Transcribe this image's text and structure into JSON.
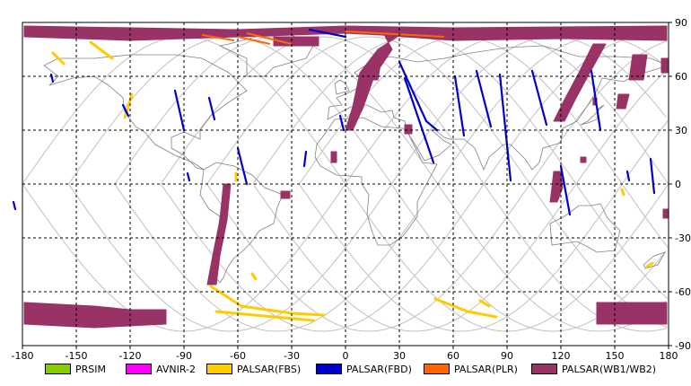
{
  "axes": {
    "x_ticks": [
      "-180",
      "-150",
      "-120",
      "-90",
      "-60",
      "-30",
      "0",
      "30",
      "60",
      "90",
      "120",
      "150",
      "180"
    ],
    "y_ticks": [
      "90",
      "60",
      "30",
      "0",
      "-30",
      "-60",
      "-90"
    ]
  },
  "legend": [
    {
      "label": "PRSIM",
      "color": "#88cc00"
    },
    {
      "label": "AVNIR-2",
      "color": "#ff00ff"
    },
    {
      "label": "PALSAR(FBS)",
      "color": "#ffcc00"
    },
    {
      "label": "PALSAR(FBD)",
      "color": "#0000cc"
    },
    {
      "label": "PALSAR(PLR)",
      "color": "#ff6600"
    },
    {
      "label": "PALSAR(WB1/WB2)",
      "color": "#993366"
    }
  ],
  "chart_data": {
    "type": "map",
    "projection": "equirectangular",
    "xlim": [
      -180,
      180
    ],
    "ylim": [
      -90,
      90
    ],
    "grid": true,
    "swaths": {
      "wb": [
        {
          "name": "arctic-band",
          "pts": [
            [
              -179,
              88
            ],
            [
              -60,
              86
            ],
            [
              0,
              88
            ],
            [
              60,
              87
            ],
            [
              179,
              88
            ],
            [
              179,
              80
            ],
            [
              120,
              81
            ],
            [
              60,
              80
            ],
            [
              20,
              83
            ],
            [
              0,
              84
            ],
            [
              -60,
              82
            ],
            [
              -120,
              80
            ],
            [
              -179,
              82
            ]
          ]
        },
        {
          "name": "greenland-block",
          "pts": [
            [
              -40,
              82
            ],
            [
              -15,
              82
            ],
            [
              -15,
              77
            ],
            [
              -40,
              77
            ]
          ]
        },
        {
          "name": "europe-arc",
          "pts": [
            [
              20,
              86
            ],
            [
              35,
              86
            ],
            [
              18,
              75
            ],
            [
              8,
              62
            ],
            [
              4,
              43
            ],
            [
              0,
              30
            ],
            [
              4,
              30
            ],
            [
              10,
              43
            ],
            [
              16,
              60
            ],
            [
              26,
              75
            ]
          ]
        },
        {
          "name": "scandinavia-strip",
          "pts": [
            [
              14,
              70
            ],
            [
              20,
              70
            ],
            [
              18,
              58
            ],
            [
              12,
              58
            ]
          ]
        },
        {
          "name": "siberia-arc",
          "pts": [
            [
              138,
              78
            ],
            [
              145,
              78
            ],
            [
              135,
              60
            ],
            [
              128,
              47
            ],
            [
              122,
              35
            ],
            [
              116,
              35
            ],
            [
              122,
              47
            ],
            [
              130,
              62
            ]
          ]
        },
        {
          "name": "kamchatka",
          "pts": [
            [
              160,
              72
            ],
            [
              168,
              72
            ],
            [
              166,
              58
            ],
            [
              158,
              58
            ]
          ]
        },
        {
          "name": "kamchatka-2",
          "pts": [
            [
              176,
              70
            ],
            [
              180,
              70
            ],
            [
              180,
              62
            ],
            [
              176,
              62
            ]
          ]
        },
        {
          "name": "sakhalin",
          "pts": [
            [
              152,
              50
            ],
            [
              158,
              50
            ],
            [
              156,
              42
            ],
            [
              151,
              42
            ]
          ]
        },
        {
          "name": "japan-strip",
          "pts": [
            [
              138,
              48
            ],
            [
              140,
              48
            ],
            [
              140,
              44
            ],
            [
              138,
              44
            ]
          ]
        },
        {
          "name": "se-asia-strip",
          "pts": [
            [
              116,
              7
            ],
            [
              120,
              7
            ],
            [
              121,
              -2
            ],
            [
              118,
              -10
            ],
            [
              114,
              -10
            ],
            [
              115,
              -2
            ]
          ]
        },
        {
          "name": "andes-strip",
          "pts": [
            [
              -68,
              0
            ],
            [
              -64,
              0
            ],
            [
              -66,
              -20
            ],
            [
              -70,
              -40
            ],
            [
              -72,
              -56
            ],
            [
              -77,
              -56
            ],
            [
              -74,
              -40
            ],
            [
              -70,
              -20
            ]
          ]
        },
        {
          "name": "caribbean",
          "pts": [
            [
              -8,
              18
            ],
            [
              -5,
              18
            ],
            [
              -5,
              12
            ],
            [
              -8,
              12
            ]
          ]
        },
        {
          "name": "amazon",
          "pts": [
            [
              -36,
              -4
            ],
            [
              -31,
              -4
            ],
            [
              -31,
              -8
            ],
            [
              -36,
              -8
            ]
          ]
        },
        {
          "name": "arabia",
          "pts": [
            [
              33,
              33
            ],
            [
              37,
              33
            ],
            [
              37,
              28
            ],
            [
              33,
              28
            ]
          ]
        },
        {
          "name": "png",
          "pts": [
            [
              177,
              -14
            ],
            [
              180,
              -14
            ],
            [
              180,
              -19
            ],
            [
              177,
              -19
            ]
          ]
        },
        {
          "name": "indonesia",
          "pts": [
            [
              131,
              15
            ],
            [
              134,
              15
            ],
            [
              134,
              12
            ],
            [
              131,
              12
            ]
          ]
        },
        {
          "name": "antarctic-west",
          "pts": [
            [
              -179,
              -66
            ],
            [
              -140,
              -68
            ],
            [
              -120,
              -70
            ],
            [
              -100,
              -70
            ],
            [
              -100,
              -78
            ],
            [
              -140,
              -80
            ],
            [
              -179,
              -78
            ]
          ]
        },
        {
          "name": "antarctic-east",
          "pts": [
            [
              140,
              -66
            ],
            [
              179,
              -66
            ],
            [
              179,
              -78
            ],
            [
              140,
              -78
            ]
          ]
        }
      ],
      "fbd": [
        {
          "name": "fbd-1",
          "pts": [
            [
              -95,
              52
            ],
            [
              -90,
              30
            ]
          ]
        },
        {
          "name": "fbd-2",
          "pts": [
            [
              -76,
              48
            ],
            [
              -73,
              36
            ]
          ]
        },
        {
          "name": "fbd-3",
          "pts": [
            [
              -60,
              20
            ],
            [
              -55,
              0
            ]
          ]
        },
        {
          "name": "fbd-4",
          "pts": [
            [
              -20,
              86
            ],
            [
              0,
              82
            ]
          ]
        },
        {
          "name": "fbd-5",
          "pts": [
            [
              -1,
              30
            ],
            [
              -3,
              38
            ]
          ]
        },
        {
          "name": "fbd-6",
          "pts": [
            [
              30,
              68
            ],
            [
              45,
              35
            ],
            [
              51,
              30
            ]
          ]
        },
        {
          "name": "fbd-7",
          "pts": [
            [
              -22,
              18
            ],
            [
              -23,
              10
            ]
          ]
        },
        {
          "name": "fbd-8",
          "pts": [
            [
              33,
              59
            ],
            [
              49,
              12
            ]
          ]
        },
        {
          "name": "fbd-9",
          "pts": [
            [
              61,
              60
            ],
            [
              66,
              27
            ]
          ]
        },
        {
          "name": "fbd-10",
          "pts": [
            [
              73,
              63
            ],
            [
              81,
              32
            ]
          ]
        },
        {
          "name": "fbd-11",
          "pts": [
            [
              86,
              61
            ],
            [
              92,
              2
            ]
          ]
        },
        {
          "name": "fbd-12",
          "pts": [
            [
              104,
              63
            ],
            [
              112,
              33
            ]
          ]
        },
        {
          "name": "fbd-13",
          "pts": [
            [
              120,
              10
            ],
            [
              125,
              -17
            ]
          ]
        },
        {
          "name": "fbd-14",
          "pts": [
            [
              137,
              63
            ],
            [
              142,
              30
            ]
          ]
        },
        {
          "name": "fbd-15",
          "pts": [
            [
              157,
              7
            ],
            [
              158,
              2
            ]
          ]
        },
        {
          "name": "fbd-16",
          "pts": [
            [
              170,
              14
            ],
            [
              172,
              -5
            ]
          ]
        },
        {
          "name": "fbd-17",
          "pts": [
            [
              -164,
              61
            ],
            [
              -163,
              57
            ]
          ]
        },
        {
          "name": "fbd-18",
          "pts": [
            [
              -124,
              44
            ],
            [
              -121,
              38
            ]
          ]
        },
        {
          "name": "fbd-19",
          "pts": [
            [
              -185,
              -10
            ],
            [
              -184,
              -14
            ]
          ]
        },
        {
          "name": "fbd-20",
          "pts": [
            [
              -88,
              6
            ],
            [
              -87,
              2
            ]
          ]
        }
      ],
      "fbs": [
        {
          "name": "fbs-1",
          "pts": [
            [
              -163,
              73
            ],
            [
              -157,
              67
            ]
          ]
        },
        {
          "name": "fbs-2",
          "pts": [
            [
              -142,
              79
            ],
            [
              -130,
              70
            ]
          ]
        },
        {
          "name": "fbs-3",
          "pts": [
            [
              -119,
              50
            ],
            [
              -123,
              37
            ]
          ]
        },
        {
          "name": "fbs-4",
          "pts": [
            [
              -75,
              -57
            ],
            [
              -58,
              -68
            ],
            [
              -30,
              -72
            ],
            [
              -12,
              -73
            ]
          ]
        },
        {
          "name": "fbs-5",
          "pts": [
            [
              -72,
              -71
            ],
            [
              -40,
              -74
            ],
            [
              -18,
              -76
            ]
          ]
        },
        {
          "name": "fbs-6",
          "pts": [
            [
              -52,
              -50
            ],
            [
              -50,
              -53
            ]
          ]
        },
        {
          "name": "fbs-7",
          "pts": [
            [
              50,
              -64
            ],
            [
              68,
              -71
            ],
            [
              84,
              -74
            ]
          ]
        },
        {
          "name": "fbs-8",
          "pts": [
            [
              75,
              -65
            ],
            [
              80,
              -68
            ]
          ]
        },
        {
          "name": "fbs-9",
          "pts": [
            [
              -61,
              6
            ],
            [
              -61,
              2
            ]
          ]
        },
        {
          "name": "fbs-10",
          "pts": [
            [
              168,
              -46
            ],
            [
              171,
              -44
            ]
          ]
        },
        {
          "name": "fbs-11",
          "pts": [
            [
              154,
              -3
            ],
            [
              155,
              -6
            ]
          ]
        }
      ],
      "plr": [
        {
          "name": "plr-1",
          "pts": [
            [
              -55,
              84
            ],
            [
              -30,
              78
            ]
          ]
        },
        {
          "name": "plr-2",
          "pts": [
            [
              -60,
              82
            ],
            [
              -42,
              78
            ]
          ]
        },
        {
          "name": "plr-3",
          "pts": [
            [
              -80,
              83
            ],
            [
              -62,
              80
            ]
          ]
        },
        {
          "name": "plr-4",
          "pts": [
            [
              0,
              85
            ],
            [
              55,
              82
            ]
          ]
        }
      ]
    },
    "colors": {
      "wb": "#993366",
      "fbd": "#0000cc",
      "fbs": "#ffcc00",
      "plr": "#ff6600",
      "orbit": "#c0c0c0",
      "coast": "#808080",
      "grid": "#000000"
    }
  }
}
